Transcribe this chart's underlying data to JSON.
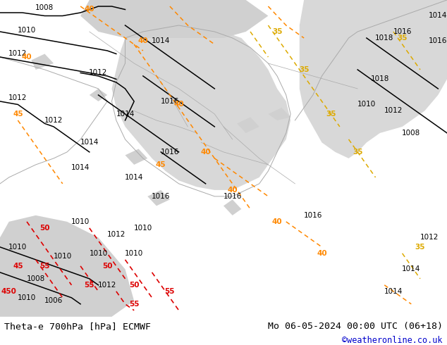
{
  "title_left": "Theta-e 700hPa [hPa] ECMWF",
  "title_right": "Mo 06-05-2024 00:00 UTC (06+18)",
  "copyright": "©weatheronline.co.uk",
  "bg_color": "#c8e6a0",
  "fig_width": 6.34,
  "fig_height": 4.9,
  "dpi": 100,
  "map_area": [
    0,
    0,
    1,
    1
  ],
  "bottom_bar_color": "#ffffff",
  "bottom_bar_height": 0.082,
  "title_fontsize": 9.5,
  "copyright_color": "#0000cc",
  "copyright_fontsize": 8.5
}
